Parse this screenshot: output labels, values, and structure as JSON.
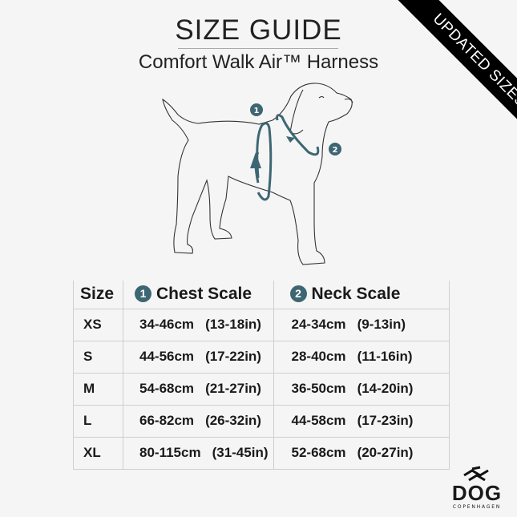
{
  "header": {
    "title": "SIZE GUIDE",
    "subtitle": "Comfort Walk Air™ Harness"
  },
  "banner": {
    "text": "UPDATED SIZES!"
  },
  "colors": {
    "accent": "#3d6673",
    "background": "#f5f5f5",
    "banner": "#000000"
  },
  "diagram": {
    "marker_1": "1",
    "marker_2": "2"
  },
  "table": {
    "headers": {
      "size": "Size",
      "chest_num": "1",
      "chest": "Chest Scale",
      "neck_num": "2",
      "neck": "Neck Scale"
    },
    "rows": [
      {
        "size": "XS",
        "chest_cm": "34-46cm",
        "chest_in": "(13-18in)",
        "neck_cm": "24-34cm",
        "neck_in": "(9-13in)"
      },
      {
        "size": "S",
        "chest_cm": "44-56cm",
        "chest_in": "(17-22in)",
        "neck_cm": "28-40cm",
        "neck_in": "(11-16in)"
      },
      {
        "size": "M",
        "chest_cm": "54-68cm",
        "chest_in": "(21-27in)",
        "neck_cm": "36-50cm",
        "neck_in": "(14-20in)"
      },
      {
        "size": "L",
        "chest_cm": "66-82cm",
        "chest_in": "(26-32in)",
        "neck_cm": "44-58cm",
        "neck_in": "(17-23in)"
      },
      {
        "size": "XL",
        "chest_cm": "80-115cm",
        "chest_in": "(31-45in)",
        "neck_cm": "52-68cm",
        "neck_in": "(20-27in)"
      }
    ]
  },
  "logo": {
    "word": "DOG",
    "sub": "COPENHAGEN"
  }
}
